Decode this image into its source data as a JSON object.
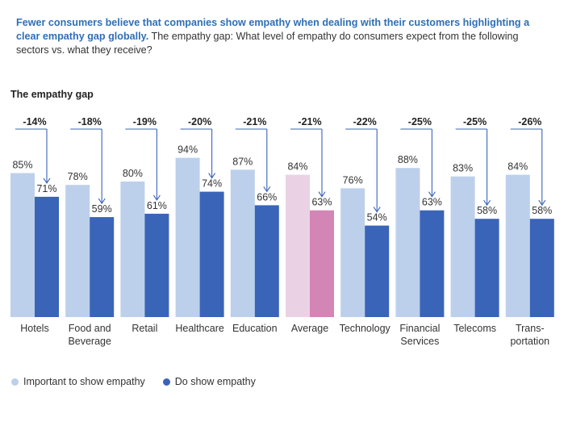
{
  "header": {
    "headline_bold": "Fewer consumers believe that companies show empathy when dealing with their customers highlighting a clear empathy gap globally.",
    "headline_rest": " The empathy gap: What level of empathy do consumers expect from the following sectors vs. what they receive?",
    "chart_title": "The empathy gap"
  },
  "legend": {
    "important_label": "Important to show empathy",
    "do_label": "Do show empathy"
  },
  "colors": {
    "important": "#bcd0ec",
    "do": "#3a64b8",
    "average_important": "#ead2e4",
    "average_do": "#d385b5",
    "arrow": "#3a64b8",
    "headline_accent": "#2f6fb5"
  },
  "chart_data": {
    "type": "bar",
    "title": "The empathy gap",
    "categories": [
      [
        "Hotels"
      ],
      [
        "Food and",
        "Beverage"
      ],
      [
        "Retail"
      ],
      [
        "Healthcare"
      ],
      [
        "Education"
      ],
      [
        "Average"
      ],
      [
        "Technology"
      ],
      [
        "Financial",
        "Services"
      ],
      [
        "Telecoms"
      ],
      [
        "Trans-",
        "portation"
      ]
    ],
    "series": [
      {
        "name": "Important to show empathy",
        "values": [
          85,
          78,
          80,
          94,
          87,
          84,
          76,
          88,
          83,
          84
        ],
        "labels": [
          "85%",
          "78%",
          "80%",
          "94%",
          "87%",
          "84%",
          "76%",
          "88%",
          "83%",
          "84%"
        ]
      },
      {
        "name": "Do show empathy",
        "values": [
          71,
          59,
          61,
          74,
          66,
          63,
          54,
          63,
          58,
          58
        ],
        "labels": [
          "71%",
          "59%",
          "61%",
          "74%",
          "66%",
          "63%",
          "54%",
          "63%",
          "58%",
          "58%"
        ]
      }
    ],
    "gaps": [
      "-14%",
      "-18%",
      "-19%",
      "-20%",
      "-21%",
      "-21%",
      "-22%",
      "-25%",
      "-25%",
      "-26%"
    ],
    "highlight_index": 5,
    "ylim": [
      0,
      100
    ],
    "xlabel": "",
    "ylabel": ""
  }
}
